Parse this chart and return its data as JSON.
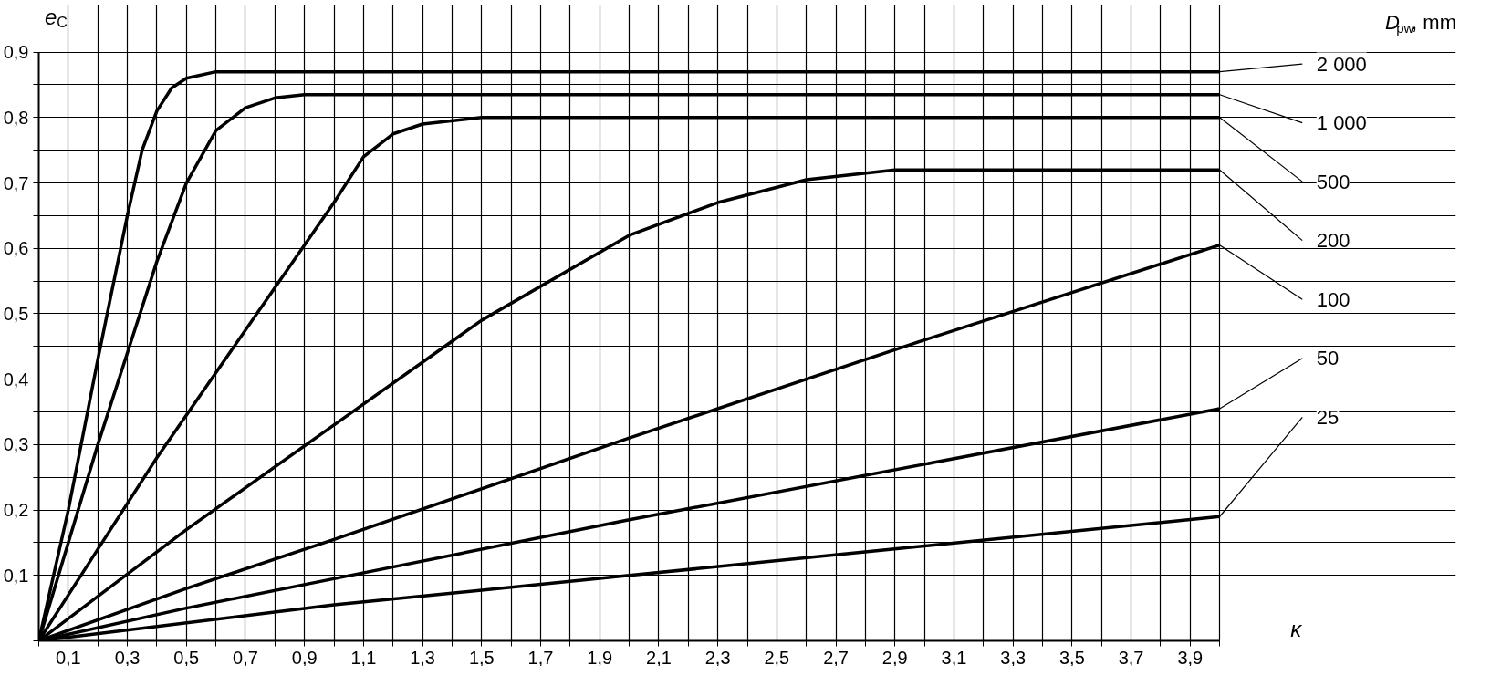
{
  "chart_data": {
    "type": "line",
    "xlabel": "κ",
    "ylabel": "e$_{C}$",
    "legend_title": "D$_{pw}$, mm",
    "xlim": [
      0,
      4
    ],
    "ylim": [
      0,
      0.9
    ],
    "xticks": [
      {
        "value": 0,
        "label": null
      },
      {
        "value": 0.1,
        "label": "0,1"
      },
      {
        "value": 0.2,
        "label": null
      },
      {
        "value": 0.3,
        "label": "0,3"
      },
      {
        "value": 0.4,
        "label": null
      },
      {
        "value": 0.5,
        "label": "0,5"
      },
      {
        "value": 0.6,
        "label": null
      },
      {
        "value": 0.7,
        "label": "0,7"
      },
      {
        "value": 0.8,
        "label": null
      },
      {
        "value": 0.9,
        "label": "0,9"
      },
      {
        "value": 1.0,
        "label": null
      },
      {
        "value": 1.1,
        "label": "1,1"
      },
      {
        "value": 1.2,
        "label": null
      },
      {
        "value": 1.3,
        "label": "1,3"
      },
      {
        "value": 1.4,
        "label": null
      },
      {
        "value": 1.5,
        "label": "1,5"
      },
      {
        "value": 1.6,
        "label": null
      },
      {
        "value": 1.7,
        "label": "1,7"
      },
      {
        "value": 1.8,
        "label": null
      },
      {
        "value": 1.9,
        "label": "1,9"
      },
      {
        "value": 2.0,
        "label": null
      },
      {
        "value": 2.1,
        "label": "2,1"
      },
      {
        "value": 2.2,
        "label": null
      },
      {
        "value": 2.3,
        "label": "2,3"
      },
      {
        "value": 2.4,
        "label": null
      },
      {
        "value": 2.5,
        "label": "2,5"
      },
      {
        "value": 2.6,
        "label": null
      },
      {
        "value": 2.7,
        "label": "2,7"
      },
      {
        "value": 2.8,
        "label": null
      },
      {
        "value": 2.9,
        "label": "2,9"
      },
      {
        "value": 3.0,
        "label": null
      },
      {
        "value": 3.1,
        "label": "3,1"
      },
      {
        "value": 3.2,
        "label": null
      },
      {
        "value": 3.3,
        "label": "3,3"
      },
      {
        "value": 3.4,
        "label": null
      },
      {
        "value": 3.5,
        "label": "3,5"
      },
      {
        "value": 3.6,
        "label": null
      },
      {
        "value": 3.7,
        "label": "3,7"
      },
      {
        "value": 3.8,
        "label": null
      },
      {
        "value": 3.9,
        "label": "3,9"
      },
      {
        "value": 4.0,
        "label": null
      }
    ],
    "yticks": [
      {
        "value": 0,
        "label": null
      },
      {
        "value": 0.05,
        "label": null
      },
      {
        "value": 0.1,
        "label": "0,1"
      },
      {
        "value": 0.15,
        "label": null
      },
      {
        "value": 0.2,
        "label": "0,2"
      },
      {
        "value": 0.25,
        "label": null
      },
      {
        "value": 0.3,
        "label": "0,3"
      },
      {
        "value": 0.35,
        "label": null
      },
      {
        "value": 0.4,
        "label": "0,4"
      },
      {
        "value": 0.45,
        "label": null
      },
      {
        "value": 0.5,
        "label": "0,5"
      },
      {
        "value": 0.55,
        "label": null
      },
      {
        "value": 0.6,
        "label": "0,6"
      },
      {
        "value": 0.65,
        "label": null
      },
      {
        "value": 0.7,
        "label": "0,7"
      },
      {
        "value": 0.75,
        "label": null
      },
      {
        "value": 0.8,
        "label": "0,8"
      },
      {
        "value": 0.85,
        "label": null
      },
      {
        "value": 0.9,
        "label": "0,9"
      }
    ],
    "grid": true,
    "line_style": "solid",
    "legend": "right",
    "series": [
      {
        "name": "2 000",
        "color": "#000000",
        "x": [
          0,
          0.1,
          0.2,
          0.3,
          0.35,
          0.4,
          0.45,
          0.5,
          0.6,
          4.0
        ],
        "values": [
          0,
          0.2,
          0.43,
          0.65,
          0.75,
          0.81,
          0.845,
          0.86,
          0.87,
          0.87
        ]
      },
      {
        "name": "1 000",
        "color": "#000000",
        "x": [
          0,
          0.2,
          0.3,
          0.4,
          0.5,
          0.6,
          0.7,
          0.8,
          0.9,
          4.0
        ],
        "values": [
          0,
          0.3,
          0.44,
          0.58,
          0.7,
          0.78,
          0.815,
          0.83,
          0.835,
          0.835
        ]
      },
      {
        "name": "500",
        "color": "#000000",
        "x": [
          0,
          0.2,
          0.4,
          0.6,
          0.8,
          1.0,
          1.1,
          1.2,
          1.3,
          1.5,
          4.0
        ],
        "values": [
          0,
          0.14,
          0.28,
          0.41,
          0.54,
          0.67,
          0.74,
          0.775,
          0.79,
          0.8,
          0.8
        ]
      },
      {
        "name": "200",
        "color": "#000000",
        "x": [
          0,
          0.5,
          1.0,
          1.5,
          2.0,
          2.3,
          2.6,
          2.9,
          4.0
        ],
        "values": [
          0,
          0.17,
          0.33,
          0.49,
          0.62,
          0.67,
          0.705,
          0.72,
          0.72
        ]
      },
      {
        "name": "100",
        "color": "#000000",
        "x": [
          0,
          0.5,
          1.0,
          2.0,
          3.0,
          4.0
        ],
        "values": [
          0,
          0.08,
          0.155,
          0.31,
          0.46,
          0.605
        ]
      },
      {
        "name": "50",
        "color": "#000000",
        "x": [
          0,
          0.5,
          1.0,
          2.0,
          3.0,
          4.0
        ],
        "values": [
          0,
          0.05,
          0.095,
          0.185,
          0.27,
          0.355
        ]
      },
      {
        "name": "25",
        "color": "#000000",
        "x": [
          0,
          1.0,
          2.0,
          3.0,
          4.0
        ],
        "values": [
          0,
          0.055,
          0.1,
          0.145,
          0.19
        ]
      }
    ]
  }
}
